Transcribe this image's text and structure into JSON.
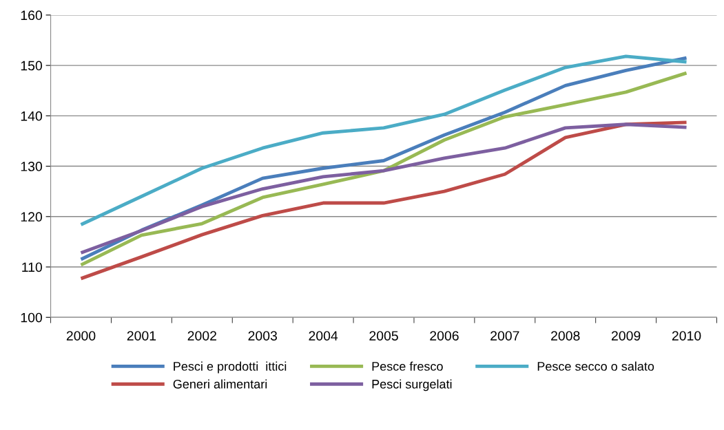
{
  "chart_data": {
    "type": "line",
    "categories": [
      "2000",
      "2001",
      "2002",
      "2003",
      "2004",
      "2005",
      "2006",
      "2007",
      "2008",
      "2009",
      "2010"
    ],
    "ylim": [
      100,
      160
    ],
    "yticks": [
      100,
      110,
      120,
      130,
      140,
      150,
      160
    ],
    "grid": "y",
    "legend": "bottom",
    "marker": "none",
    "line_style": "solid",
    "series": [
      {
        "name": "Pesci e prodotti  ittici",
        "color": "#4a7ebb",
        "values": [
          111.5,
          117.3,
          122.3,
          127.6,
          129.6,
          131.1,
          136.2,
          140.7,
          146.0,
          149.0,
          151.5
        ]
      },
      {
        "name": "Generi alimentari",
        "color": "#be4b48",
        "values": [
          107.7,
          112.0,
          116.4,
          120.2,
          122.7,
          122.7,
          125.0,
          128.4,
          135.7,
          138.3,
          138.7
        ]
      },
      {
        "name": "Pesce fresco",
        "color": "#98b954",
        "values": [
          110.4,
          116.3,
          118.6,
          123.8,
          126.4,
          129.1,
          135.2,
          139.8,
          142.2,
          144.7,
          148.5
        ]
      },
      {
        "name": "Pesci surgelati",
        "color": "#7d5fa0",
        "values": [
          112.8,
          117.2,
          122.0,
          125.5,
          127.9,
          129.1,
          131.6,
          133.6,
          137.6,
          138.3,
          137.7
        ]
      },
      {
        "name": "Pesce secco o salato",
        "color": "#4bacc6",
        "values": [
          118.4,
          124.0,
          129.6,
          133.6,
          136.6,
          137.6,
          140.3,
          145.1,
          149.6,
          151.8,
          150.7
        ]
      }
    ]
  }
}
